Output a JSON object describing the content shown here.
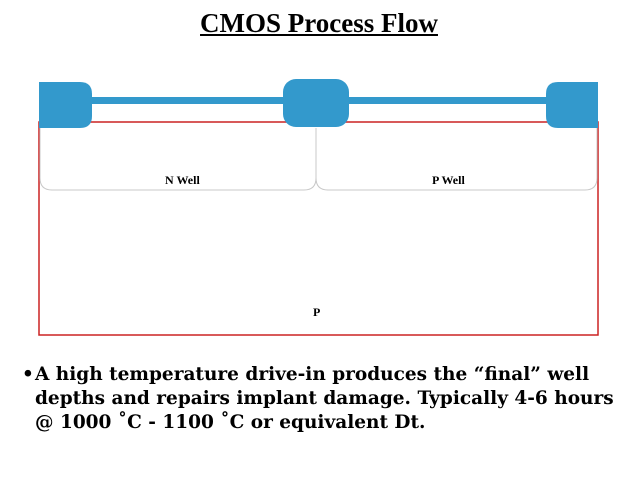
{
  "title": "CMOS Process Flow",
  "diagram": {
    "substrate_label": "P",
    "wells": [
      {
        "label": "N Well"
      },
      {
        "label": "P Well"
      }
    ],
    "colors": {
      "oxide": "#3399cc",
      "substrate_border": "#cc2222",
      "well_border": "#c8c8c8"
    }
  },
  "bullet": {
    "marker": "•",
    "text": "A high temperature drive-in produces the “final” well depths and repairs implant damage. Typically 4-6 hours @ 1000 ˚C - 1100 ˚C or equivalent Dt."
  }
}
